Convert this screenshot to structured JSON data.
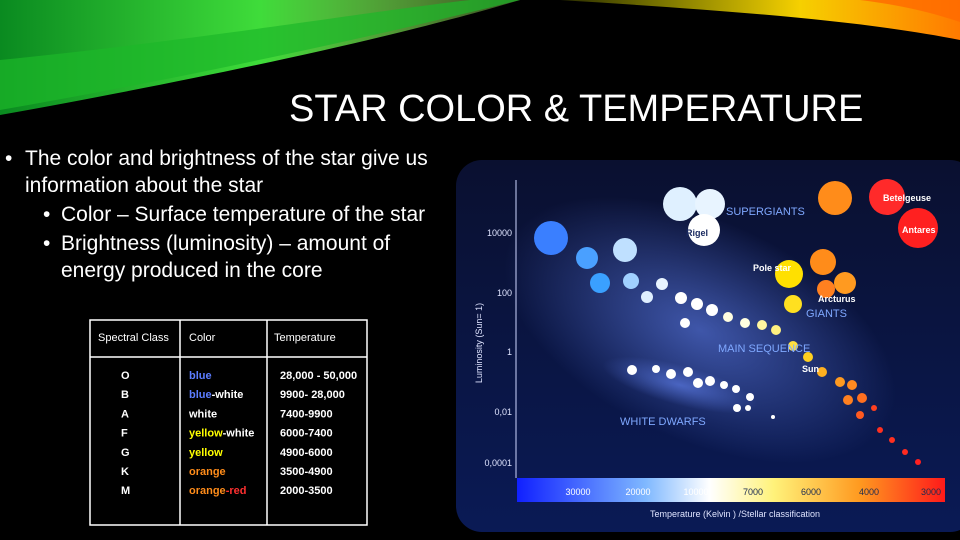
{
  "slide": {
    "title": "STAR COLOR & TEMPERATURE",
    "bullets": [
      {
        "text": "The color and brightness of the star give us information about the star",
        "level": 1
      },
      {
        "text": "Color – Surface temperature of the star",
        "level": 2
      },
      {
        "text": "Brightness (luminosity) – amount of energy produced in the core",
        "level": 2
      }
    ],
    "table": {
      "header": [
        "Spectral Class",
        "Color",
        "Temperature"
      ],
      "rows": [
        [
          "O",
          {
            "parts": [
              {
                "text": "blue",
                "color": "#5b7cff"
              }
            ]
          },
          "28,000 - 50,000"
        ],
        [
          "B",
          {
            "parts": [
              {
                "text": "blue",
                "color": "#5b7cff"
              },
              {
                "text": "-white",
                "color": "#ffffff"
              }
            ]
          },
          "9900- 28,000"
        ],
        [
          "A",
          {
            "parts": [
              {
                "text": "white",
                "color": "#ffffff"
              }
            ]
          },
          "7400-9900"
        ],
        [
          "F",
          {
            "parts": [
              {
                "text": "yellow",
                "color": "#ffff00"
              },
              {
                "text": "-white",
                "color": "#ffffff"
              }
            ]
          },
          "6000-7400"
        ],
        [
          "G",
          {
            "parts": [
              {
                "text": "yellow",
                "color": "#ffff00"
              }
            ]
          },
          "4900-6000"
        ],
        [
          "K",
          {
            "parts": [
              {
                "text": "orange",
                "color": "#ff8c1a"
              }
            ]
          },
          "3500-4900"
        ],
        [
          "M",
          {
            "parts": [
              {
                "text": "orange",
                "color": "#ff8c1a"
              },
              {
                "text": "-red",
                "color": "#ff3030"
              }
            ]
          },
          "2000-3500"
        ]
      ]
    },
    "diagram": {
      "y_label": "Luminosity (Sun= 1)",
      "y_ticks": [
        "10000",
        "100",
        "1",
        "0,01",
        "0,0001"
      ],
      "x_ticks": [
        "30000",
        "20000",
        "10000",
        "7000",
        "6000",
        "4000",
        "3000"
      ],
      "x_label": "Temperature (Kelvin ) /Stellar classification",
      "labels": [
        {
          "text": "SUPERGIANTS",
          "color": "#7fa8ff"
        },
        {
          "text": "Rigel",
          "color": "#1a2a60"
        },
        {
          "text": "Betelgeuse",
          "color": "#ffffff"
        },
        {
          "text": "Antares",
          "color": "#ffffff"
        },
        {
          "text": "Pole star",
          "color": "#ffffff"
        },
        {
          "text": "Arcturus",
          "color": "#ffffff"
        },
        {
          "text": "GIANTS",
          "color": "#7fa8ff"
        },
        {
          "text": "MAIN SEQUENCE",
          "color": "#7fa8ff"
        },
        {
          "text": "Sun",
          "color": "#ffffff"
        },
        {
          "text": "WHITE DWARFS",
          "color": "#7fa8ff"
        }
      ]
    }
  }
}
